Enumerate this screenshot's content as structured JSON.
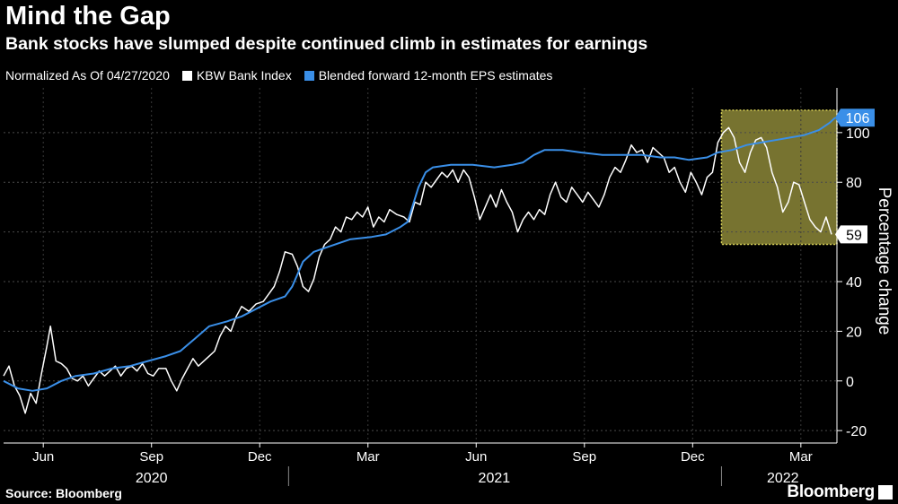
{
  "title": "Mind the Gap",
  "subtitle": "Bank stocks have slumped despite continued climb in estimates for earnings",
  "legend": {
    "note": "Normalized As Of 04/27/2020",
    "items": [
      {
        "label": "KBW Bank Index",
        "color": "#ffffff"
      },
      {
        "label": "Blended forward 12-month EPS estimates",
        "color": "#3a8fe8"
      }
    ]
  },
  "source": "Source: Bloomberg",
  "brand": "Bloomberg",
  "chart_data": {
    "type": "line",
    "title": "Mind the Gap",
    "ylabel": "Percentage change",
    "ylim": [
      -25,
      118
    ],
    "yticks": [
      -20,
      0,
      20,
      40,
      60,
      80,
      100
    ],
    "xlim": [
      0,
      23.1
    ],
    "month_ticks": [
      {
        "label": "Jun",
        "x": 1.1
      },
      {
        "label": "Sep",
        "x": 4.1
      },
      {
        "label": "Dec",
        "x": 7.1
      },
      {
        "label": "Mar",
        "x": 10.1
      },
      {
        "label": "Jun",
        "x": 13.1
      },
      {
        "label": "Sep",
        "x": 16.1
      },
      {
        "label": "Dec",
        "x": 19.1
      },
      {
        "label": "Mar",
        "x": 22.1
      }
    ],
    "year_labels": [
      {
        "label": "2020",
        "x": 4.1
      },
      {
        "label": "2021",
        "x": 13.6
      },
      {
        "label": "2022",
        "x": 21.6
      }
    ],
    "year_separators": [
      7.9,
      19.9
    ],
    "series": [
      {
        "name": "KBW Bank Index",
        "color": "#ffffff",
        "points": [
          [
            0,
            2
          ],
          [
            0.15,
            6
          ],
          [
            0.3,
            -2
          ],
          [
            0.45,
            -6
          ],
          [
            0.6,
            -13
          ],
          [
            0.75,
            -5
          ],
          [
            0.9,
            -9
          ],
          [
            1.05,
            3
          ],
          [
            1.2,
            14
          ],
          [
            1.3,
            22
          ],
          [
            1.45,
            8
          ],
          [
            1.6,
            7
          ],
          [
            1.75,
            5
          ],
          [
            1.9,
            1
          ],
          [
            2.05,
            0
          ],
          [
            2.2,
            2
          ],
          [
            2.35,
            -2
          ],
          [
            2.5,
            1
          ],
          [
            2.65,
            4
          ],
          [
            2.8,
            2
          ],
          [
            2.95,
            4
          ],
          [
            3.1,
            6
          ],
          [
            3.25,
            2
          ],
          [
            3.4,
            5
          ],
          [
            3.55,
            6
          ],
          [
            3.7,
            4
          ],
          [
            3.85,
            7
          ],
          [
            4.0,
            3
          ],
          [
            4.15,
            2
          ],
          [
            4.3,
            5
          ],
          [
            4.5,
            5
          ],
          [
            4.65,
            0
          ],
          [
            4.8,
            -4
          ],
          [
            4.95,
            1
          ],
          [
            5.1,
            5
          ],
          [
            5.25,
            9
          ],
          [
            5.4,
            6
          ],
          [
            5.55,
            8
          ],
          [
            5.7,
            10
          ],
          [
            5.85,
            12
          ],
          [
            6.0,
            18
          ],
          [
            6.15,
            22
          ],
          [
            6.3,
            20
          ],
          [
            6.45,
            26
          ],
          [
            6.6,
            30
          ],
          [
            6.8,
            28
          ],
          [
            7.0,
            31
          ],
          [
            7.2,
            32
          ],
          [
            7.35,
            35
          ],
          [
            7.5,
            38
          ],
          [
            7.65,
            44
          ],
          [
            7.8,
            52
          ],
          [
            8.0,
            51
          ],
          [
            8.15,
            46
          ],
          [
            8.3,
            38
          ],
          [
            8.45,
            36
          ],
          [
            8.6,
            41
          ],
          [
            8.75,
            50
          ],
          [
            8.9,
            55
          ],
          [
            9.05,
            57
          ],
          [
            9.2,
            62
          ],
          [
            9.35,
            60
          ],
          [
            9.5,
            66
          ],
          [
            9.65,
            65
          ],
          [
            9.8,
            68
          ],
          [
            9.95,
            66
          ],
          [
            10.1,
            70
          ],
          [
            10.25,
            62
          ],
          [
            10.4,
            66
          ],
          [
            10.55,
            64
          ],
          [
            10.7,
            69
          ],
          [
            10.9,
            67
          ],
          [
            11.1,
            66
          ],
          [
            11.25,
            64
          ],
          [
            11.4,
            72
          ],
          [
            11.55,
            71
          ],
          [
            11.7,
            80
          ],
          [
            11.85,
            78
          ],
          [
            12.0,
            81
          ],
          [
            12.15,
            84
          ],
          [
            12.3,
            82
          ],
          [
            12.45,
            85
          ],
          [
            12.6,
            80
          ],
          [
            12.75,
            85
          ],
          [
            12.9,
            82
          ],
          [
            13.05,
            74
          ],
          [
            13.2,
            65
          ],
          [
            13.35,
            70
          ],
          [
            13.5,
            75
          ],
          [
            13.65,
            70
          ],
          [
            13.8,
            77
          ],
          [
            13.95,
            72
          ],
          [
            14.1,
            68
          ],
          [
            14.25,
            60
          ],
          [
            14.4,
            65
          ],
          [
            14.55,
            68
          ],
          [
            14.7,
            65
          ],
          [
            14.85,
            69
          ],
          [
            15.0,
            67
          ],
          [
            15.15,
            75
          ],
          [
            15.3,
            80
          ],
          [
            15.45,
            74
          ],
          [
            15.6,
            72
          ],
          [
            15.75,
            78
          ],
          [
            15.9,
            75
          ],
          [
            16.05,
            72
          ],
          [
            16.2,
            76
          ],
          [
            16.35,
            73
          ],
          [
            16.5,
            70
          ],
          [
            16.65,
            75
          ],
          [
            16.8,
            82
          ],
          [
            16.95,
            86
          ],
          [
            17.1,
            84
          ],
          [
            17.25,
            89
          ],
          [
            17.4,
            95
          ],
          [
            17.55,
            92
          ],
          [
            17.7,
            93
          ],
          [
            17.85,
            88
          ],
          [
            18.0,
            94
          ],
          [
            18.15,
            92
          ],
          [
            18.3,
            90
          ],
          [
            18.45,
            84
          ],
          [
            18.6,
            86
          ],
          [
            18.75,
            80
          ],
          [
            18.9,
            76
          ],
          [
            19.05,
            84
          ],
          [
            19.2,
            80
          ],
          [
            19.35,
            75
          ],
          [
            19.5,
            82
          ],
          [
            19.65,
            84
          ],
          [
            19.8,
            96
          ],
          [
            19.95,
            100
          ],
          [
            20.1,
            102
          ],
          [
            20.25,
            98
          ],
          [
            20.4,
            88
          ],
          [
            20.55,
            84
          ],
          [
            20.7,
            92
          ],
          [
            20.85,
            97
          ],
          [
            21.0,
            98
          ],
          [
            21.15,
            94
          ],
          [
            21.3,
            84
          ],
          [
            21.45,
            78
          ],
          [
            21.6,
            68
          ],
          [
            21.75,
            72
          ],
          [
            21.9,
            80
          ],
          [
            22.05,
            79
          ],
          [
            22.2,
            72
          ],
          [
            22.35,
            65
          ],
          [
            22.5,
            62
          ],
          [
            22.65,
            60
          ],
          [
            22.8,
            66
          ],
          [
            22.95,
            59
          ]
        ]
      },
      {
        "name": "Blended forward 12-month EPS estimates",
        "color": "#3a8fe8",
        "points": [
          [
            0,
            0
          ],
          [
            0.4,
            -3
          ],
          [
            0.8,
            -4
          ],
          [
            1.2,
            -3
          ],
          [
            1.6,
            0
          ],
          [
            2.0,
            2
          ],
          [
            2.5,
            3
          ],
          [
            3.0,
            5
          ],
          [
            3.5,
            6
          ],
          [
            4.0,
            8
          ],
          [
            4.5,
            10
          ],
          [
            4.9,
            12
          ],
          [
            5.3,
            17
          ],
          [
            5.7,
            22
          ],
          [
            6.2,
            24
          ],
          [
            6.6,
            26
          ],
          [
            7.0,
            29
          ],
          [
            7.4,
            32
          ],
          [
            7.8,
            34
          ],
          [
            8.0,
            38
          ],
          [
            8.3,
            48
          ],
          [
            8.6,
            52
          ],
          [
            9.0,
            54
          ],
          [
            9.6,
            57
          ],
          [
            10.2,
            58
          ],
          [
            10.6,
            59
          ],
          [
            11.0,
            62
          ],
          [
            11.2,
            64
          ],
          [
            11.5,
            78
          ],
          [
            11.7,
            84
          ],
          [
            11.9,
            86
          ],
          [
            12.4,
            87
          ],
          [
            13.0,
            87
          ],
          [
            13.6,
            86
          ],
          [
            14.1,
            87
          ],
          [
            14.4,
            88
          ],
          [
            14.7,
            91
          ],
          [
            15.0,
            93
          ],
          [
            15.5,
            93
          ],
          [
            16.0,
            92
          ],
          [
            16.6,
            91
          ],
          [
            17.2,
            91
          ],
          [
            17.7,
            91
          ],
          [
            18.2,
            90
          ],
          [
            18.6,
            90
          ],
          [
            19.0,
            89
          ],
          [
            19.5,
            90
          ],
          [
            19.8,
            92
          ],
          [
            20.2,
            93
          ],
          [
            20.6,
            95
          ],
          [
            21.0,
            96
          ],
          [
            21.4,
            97
          ],
          [
            21.8,
            98
          ],
          [
            22.2,
            99
          ],
          [
            22.6,
            101
          ],
          [
            22.9,
            104
          ],
          [
            23.05,
            106
          ]
        ]
      }
    ],
    "annotations": {
      "highlight_box": {
        "x_from": 19.9,
        "x_to": 23.1,
        "y_from": 55,
        "y_to": 109,
        "color": "#d8d257"
      },
      "last_values": [
        {
          "series": "Blended forward 12-month EPS estimates",
          "value": 106,
          "label": "106"
        },
        {
          "series": "KBW Bank Index",
          "value": 59,
          "label": "59"
        }
      ]
    }
  }
}
